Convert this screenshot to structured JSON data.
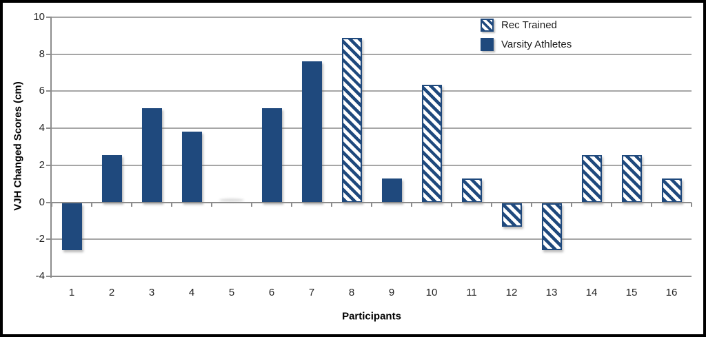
{
  "chart_data": {
    "type": "bar",
    "xlabel": "Participants",
    "ylabel": "VJH Changed Scores (cm)",
    "categories": [
      "1",
      "2",
      "3",
      "4",
      "5",
      "6",
      "7",
      "8",
      "9",
      "10",
      "11",
      "12",
      "13",
      "14",
      "15",
      "16"
    ],
    "ylim": [
      -4,
      10
    ],
    "yticks": [
      10,
      8,
      6,
      4,
      2,
      0,
      -2,
      -4
    ],
    "grid": true,
    "legend_position": "top-right",
    "series": [
      {
        "name": "Rec Trained",
        "style": "hatched",
        "values": [
          null,
          null,
          null,
          null,
          null,
          null,
          null,
          8.89,
          null,
          6.35,
          1.27,
          -1.27,
          -2.54,
          2.54,
          2.54,
          1.27
        ]
      },
      {
        "name": "Varsity Athletes",
        "style": "solid",
        "values": [
          -2.54,
          2.54,
          5.08,
          3.81,
          0,
          5.08,
          7.62,
          null,
          1.27,
          null,
          null,
          null,
          null,
          null,
          null,
          null
        ]
      }
    ],
    "colors": {
      "bar_fill": "#1F497D",
      "gridline": "#A6A6A6",
      "axis": "#8C8C8C",
      "frame": "#000000",
      "background": "#FFFFFF"
    }
  }
}
